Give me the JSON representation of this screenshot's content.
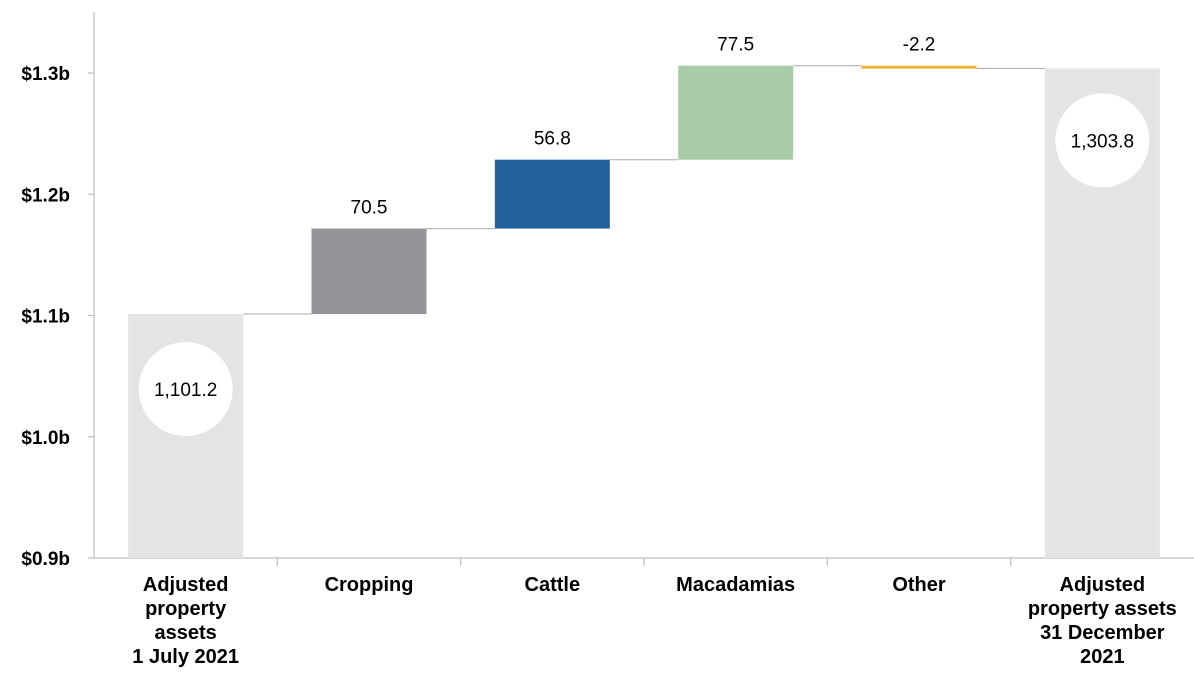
{
  "chart_data": {
    "type": "waterfall",
    "title": "",
    "xlabel": "",
    "ylabel": "",
    "ylim": [
      0.9,
      1.34
    ],
    "yticks": [
      {
        "value": 0.9,
        "label": "$0.9b"
      },
      {
        "value": 1.0,
        "label": "$1.0b"
      },
      {
        "value": 1.1,
        "label": "$1.1b"
      },
      {
        "value": 1.2,
        "label": "$1.2b"
      },
      {
        "value": 1.3,
        "label": "$1.3b"
      }
    ],
    "bars": [
      {
        "category": [
          "Adjusted",
          "property",
          "assets",
          "1 July 2021"
        ],
        "kind": "total",
        "value": 1101.2,
        "label": "1,101.2",
        "color": "#e3e4e5"
      },
      {
        "category": [
          "Cropping"
        ],
        "kind": "delta",
        "value": 70.5,
        "label": "70.5",
        "color": "#939598"
      },
      {
        "category": [
          "Cattle"
        ],
        "kind": "delta",
        "value": 56.8,
        "label": "56.8",
        "color": "#23609e"
      },
      {
        "category": [
          "Macadamias"
        ],
        "kind": "delta",
        "value": 77.5,
        "label": "77.5",
        "color": "#a9cba8"
      },
      {
        "category": [
          "Other"
        ],
        "kind": "delta",
        "value": -2.2,
        "label": "-2.2",
        "color": "#f0b532"
      },
      {
        "category": [
          "Adjusted",
          "property assets",
          "31 December",
          "2021"
        ],
        "kind": "total",
        "value": 1303.8,
        "label": "1,303.8",
        "color": "#e3e4e5"
      }
    ]
  }
}
